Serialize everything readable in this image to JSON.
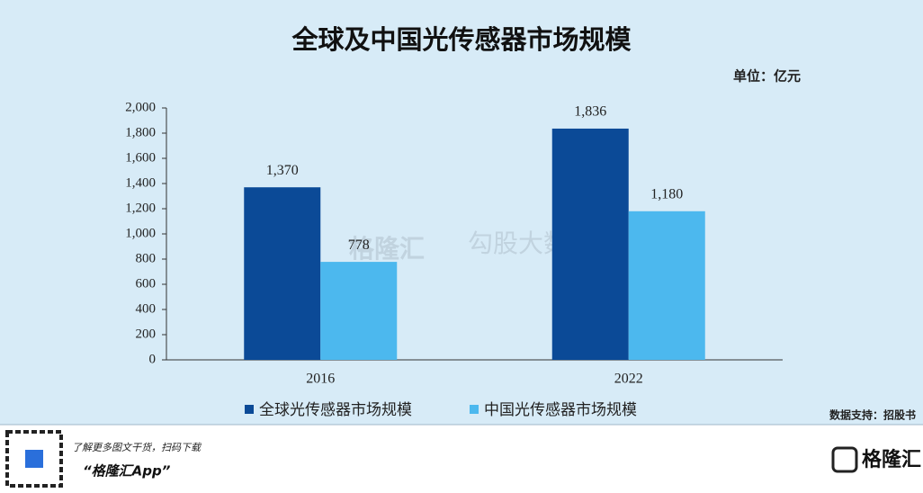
{
  "chart_data": {
    "type": "bar",
    "title": "全球及中国光传感器市场规模",
    "unit": "单位：亿元",
    "categories": [
      "2016",
      "2022"
    ],
    "series": [
      {
        "name": "全球光传感器市场规模",
        "color": "#0b4a97",
        "values": [
          1370,
          1836
        ],
        "value_labels": [
          "1,370",
          "1,836"
        ]
      },
      {
        "name": "中国光传感器市场规模",
        "color": "#4cb8ee",
        "values": [
          778,
          1180
        ],
        "value_labels": [
          "778",
          "1,180"
        ]
      }
    ],
    "ylim": [
      0,
      2000
    ],
    "yticks": [
      0,
      200,
      400,
      600,
      800,
      {
        "value": 1000,
        "label": "1,000"
      },
      {
        "value": 1200,
        "label": "1,200"
      },
      {
        "value": 1400,
        "label": "1,400"
      },
      {
        "value": 1600,
        "label": "1,600"
      },
      {
        "value": 1800,
        "label": "1,800"
      },
      {
        "value": 2000,
        "label": "2,000"
      }
    ],
    "grid": false,
    "legend": "bottom"
  },
  "source": "数据支持：招股书",
  "watermark": [
    "格隆汇",
    "勾股大数据"
  ],
  "footer": {
    "promo": "了解更多图文干货，扫码下载",
    "app": "“格隆汇App”",
    "brand": "格隆汇"
  }
}
